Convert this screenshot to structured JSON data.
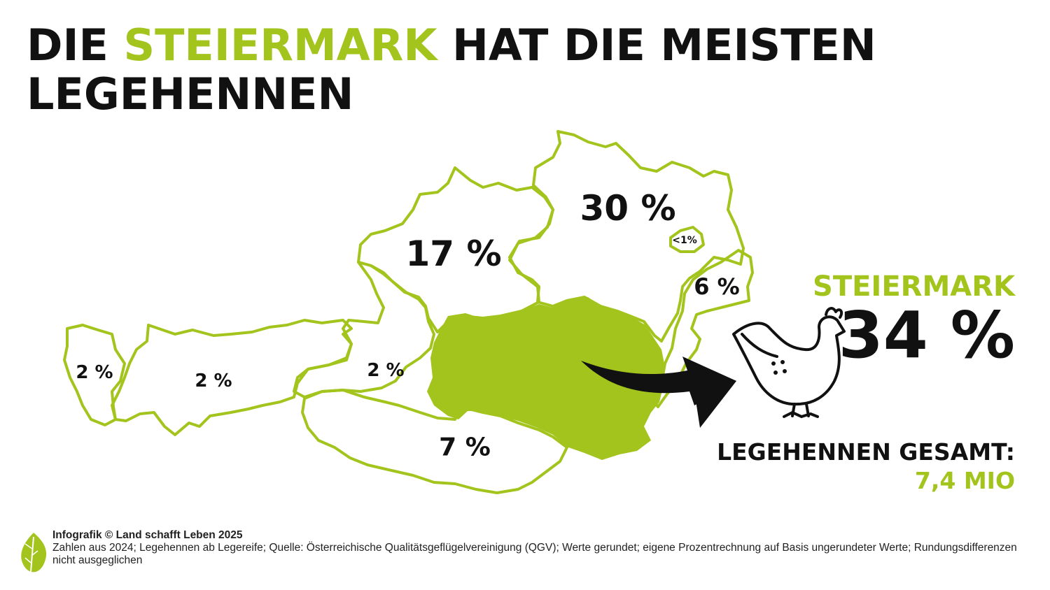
{
  "title": {
    "part1": "DIE ",
    "highlight": "STEIERMARK",
    "part2": " HAT DIE MEISTEN",
    "line2": "LEGEHENNEN"
  },
  "regions": {
    "niederoesterreich": "30 %",
    "oberoesterreich": "17 %",
    "wien": "<1%",
    "burgenland": "6 %",
    "vorarlberg": "2 %",
    "tirol": "2 %",
    "salzburg": "2 %",
    "kaernten": "7 %"
  },
  "highlight_panel": {
    "region": "STEIERMARK",
    "value": "34 %",
    "total_label": "LEGEHENNEN GESAMT:",
    "total_value": "7,4 MIO"
  },
  "footer": {
    "credit": "Infografik © Land schafft Leben 2025",
    "note": "Zahlen aus 2024; Legehennen ab Legereife; Quelle: Österreichische Qualitätsgeflügelvereinigung (QGV); Werte gerundet; eigene Prozentrechnung auf Basis ungerundeter Werte; Rundungsdifferenzen nicht ausgeglichen"
  },
  "colors": {
    "accent": "#a2c41c",
    "text": "#111111"
  },
  "icons": [
    "hen-icon",
    "arrow-icon",
    "leaf-logo-icon"
  ]
}
